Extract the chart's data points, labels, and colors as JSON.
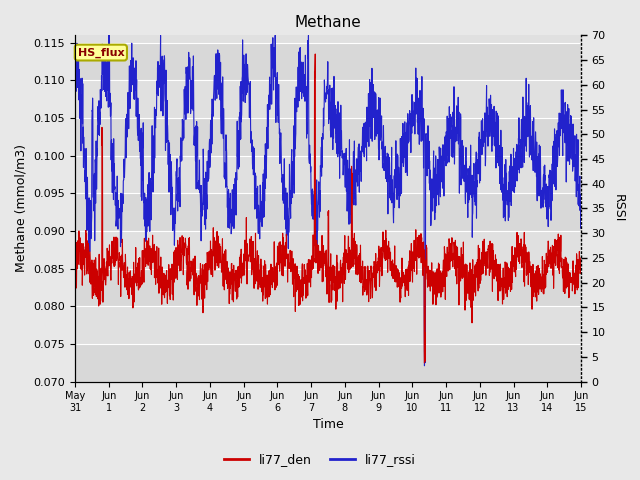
{
  "title": "Methane",
  "ylabel_left": "Methane (mmol/m3)",
  "ylabel_right": "RSSI",
  "xlabel": "Time",
  "ylim_left": [
    0.07,
    0.116
  ],
  "ylim_right": [
    0,
    70
  ],
  "yticks_left": [
    0.07,
    0.075,
    0.08,
    0.085,
    0.09,
    0.095,
    0.1,
    0.105,
    0.11,
    0.115
  ],
  "yticks_right": [
    0,
    5,
    10,
    15,
    20,
    25,
    30,
    35,
    40,
    45,
    50,
    55,
    60,
    65,
    70
  ],
  "xtick_labels": [
    "May\n31",
    "Jun\n1",
    "Jun\n2",
    "Jun\n3",
    "Jun\n4",
    "Jun\n5",
    "Jun\n6",
    "Jun\n7",
    "Jun\n8",
    "Jun\n9",
    "Jun\n10",
    "Jun\n11",
    "Jun\n12",
    "Jun\n13",
    "Jun\n14",
    "Jun\n15"
  ],
  "legend_labels": [
    "li77_den",
    "li77_rssi"
  ],
  "legend_colors": [
    "#cc0000",
    "#2222cc"
  ],
  "line_color_red": "#cc0000",
  "line_color_blue": "#2222cc",
  "background_color": "#e8e8e8",
  "plot_bg_color": "#d8d8d8",
  "inner_bg_color": "#e0e0e0",
  "grid_color": "#ffffff",
  "annotation_text": "HS_flux",
  "annotation_bg": "#ffff99",
  "annotation_border": "#aaaa00"
}
